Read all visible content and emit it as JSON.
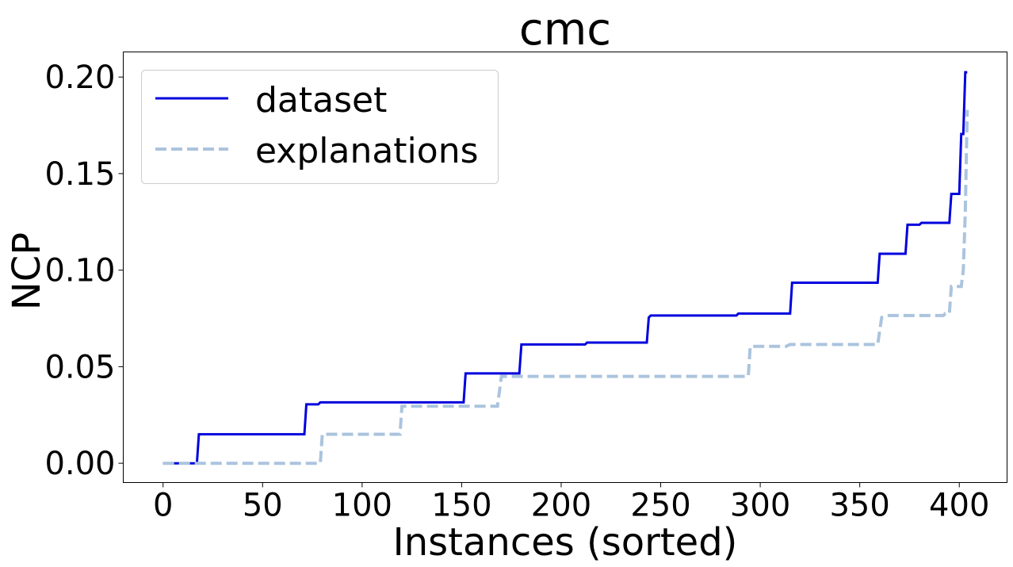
{
  "chart_data": {
    "type": "line",
    "title": "cmc",
    "xlabel": "Instances (sorted)",
    "ylabel": "NCP",
    "xlim": [
      -20,
      424
    ],
    "ylim": [
      -0.01,
      0.213
    ],
    "xticks": [
      0,
      50,
      100,
      150,
      200,
      250,
      300,
      350,
      400
    ],
    "xtick_labels": [
      "0",
      "50",
      "100",
      "150",
      "200",
      "250",
      "300",
      "350",
      "400"
    ],
    "yticks": [
      0.0,
      0.05,
      0.1,
      0.15,
      0.2
    ],
    "ytick_labels": [
      "0.00",
      "0.05",
      "0.10",
      "0.15",
      "0.20"
    ],
    "grid": false,
    "legend_position": "upper-left",
    "series": [
      {
        "name": "dataset",
        "color": "#0000dd",
        "style": "solid",
        "points": [
          [
            0,
            0.0
          ],
          [
            17,
            0.0
          ],
          [
            18,
            0.015
          ],
          [
            71,
            0.015
          ],
          [
            72,
            0.0305
          ],
          [
            78,
            0.0305
          ],
          [
            79,
            0.0315
          ],
          [
            151,
            0.0315
          ],
          [
            152,
            0.0465
          ],
          [
            179,
            0.0465
          ],
          [
            180,
            0.0615
          ],
          [
            212,
            0.0615
          ],
          [
            213,
            0.0625
          ],
          [
            243,
            0.0625
          ],
          [
            244,
            0.0755
          ],
          [
            245,
            0.0765
          ],
          [
            288,
            0.0765
          ],
          [
            289,
            0.0775
          ],
          [
            315,
            0.0775
          ],
          [
            316,
            0.0935
          ],
          [
            359,
            0.0935
          ],
          [
            360,
            0.1085
          ],
          [
            373,
            0.1085
          ],
          [
            374,
            0.1235
          ],
          [
            380,
            0.1235
          ],
          [
            381,
            0.1245
          ],
          [
            395,
            0.1245
          ],
          [
            396,
            0.1395
          ],
          [
            400,
            0.1395
          ],
          [
            401,
            0.1705
          ],
          [
            402,
            0.1705
          ],
          [
            403,
            0.2025
          ],
          [
            404,
            0.2025
          ]
        ]
      },
      {
        "name": "explanations",
        "color": "#abc4de",
        "style": "dashed",
        "points": [
          [
            0,
            0.0
          ],
          [
            79,
            0.0
          ],
          [
            80,
            0.015
          ],
          [
            119,
            0.015
          ],
          [
            120,
            0.0295
          ],
          [
            168,
            0.0295
          ],
          [
            170,
            0.045
          ],
          [
            294,
            0.045
          ],
          [
            295,
            0.0605
          ],
          [
            313,
            0.0605
          ],
          [
            315,
            0.0615
          ],
          [
            359,
            0.0615
          ],
          [
            361,
            0.0755
          ],
          [
            364,
            0.0765
          ],
          [
            392,
            0.0765
          ],
          [
            393,
            0.0775
          ],
          [
            395,
            0.0775
          ],
          [
            396,
            0.0915
          ],
          [
            401,
            0.0915
          ],
          [
            402,
            0.1
          ],
          [
            403,
            0.13
          ],
          [
            404,
            0.183
          ]
        ]
      }
    ]
  }
}
